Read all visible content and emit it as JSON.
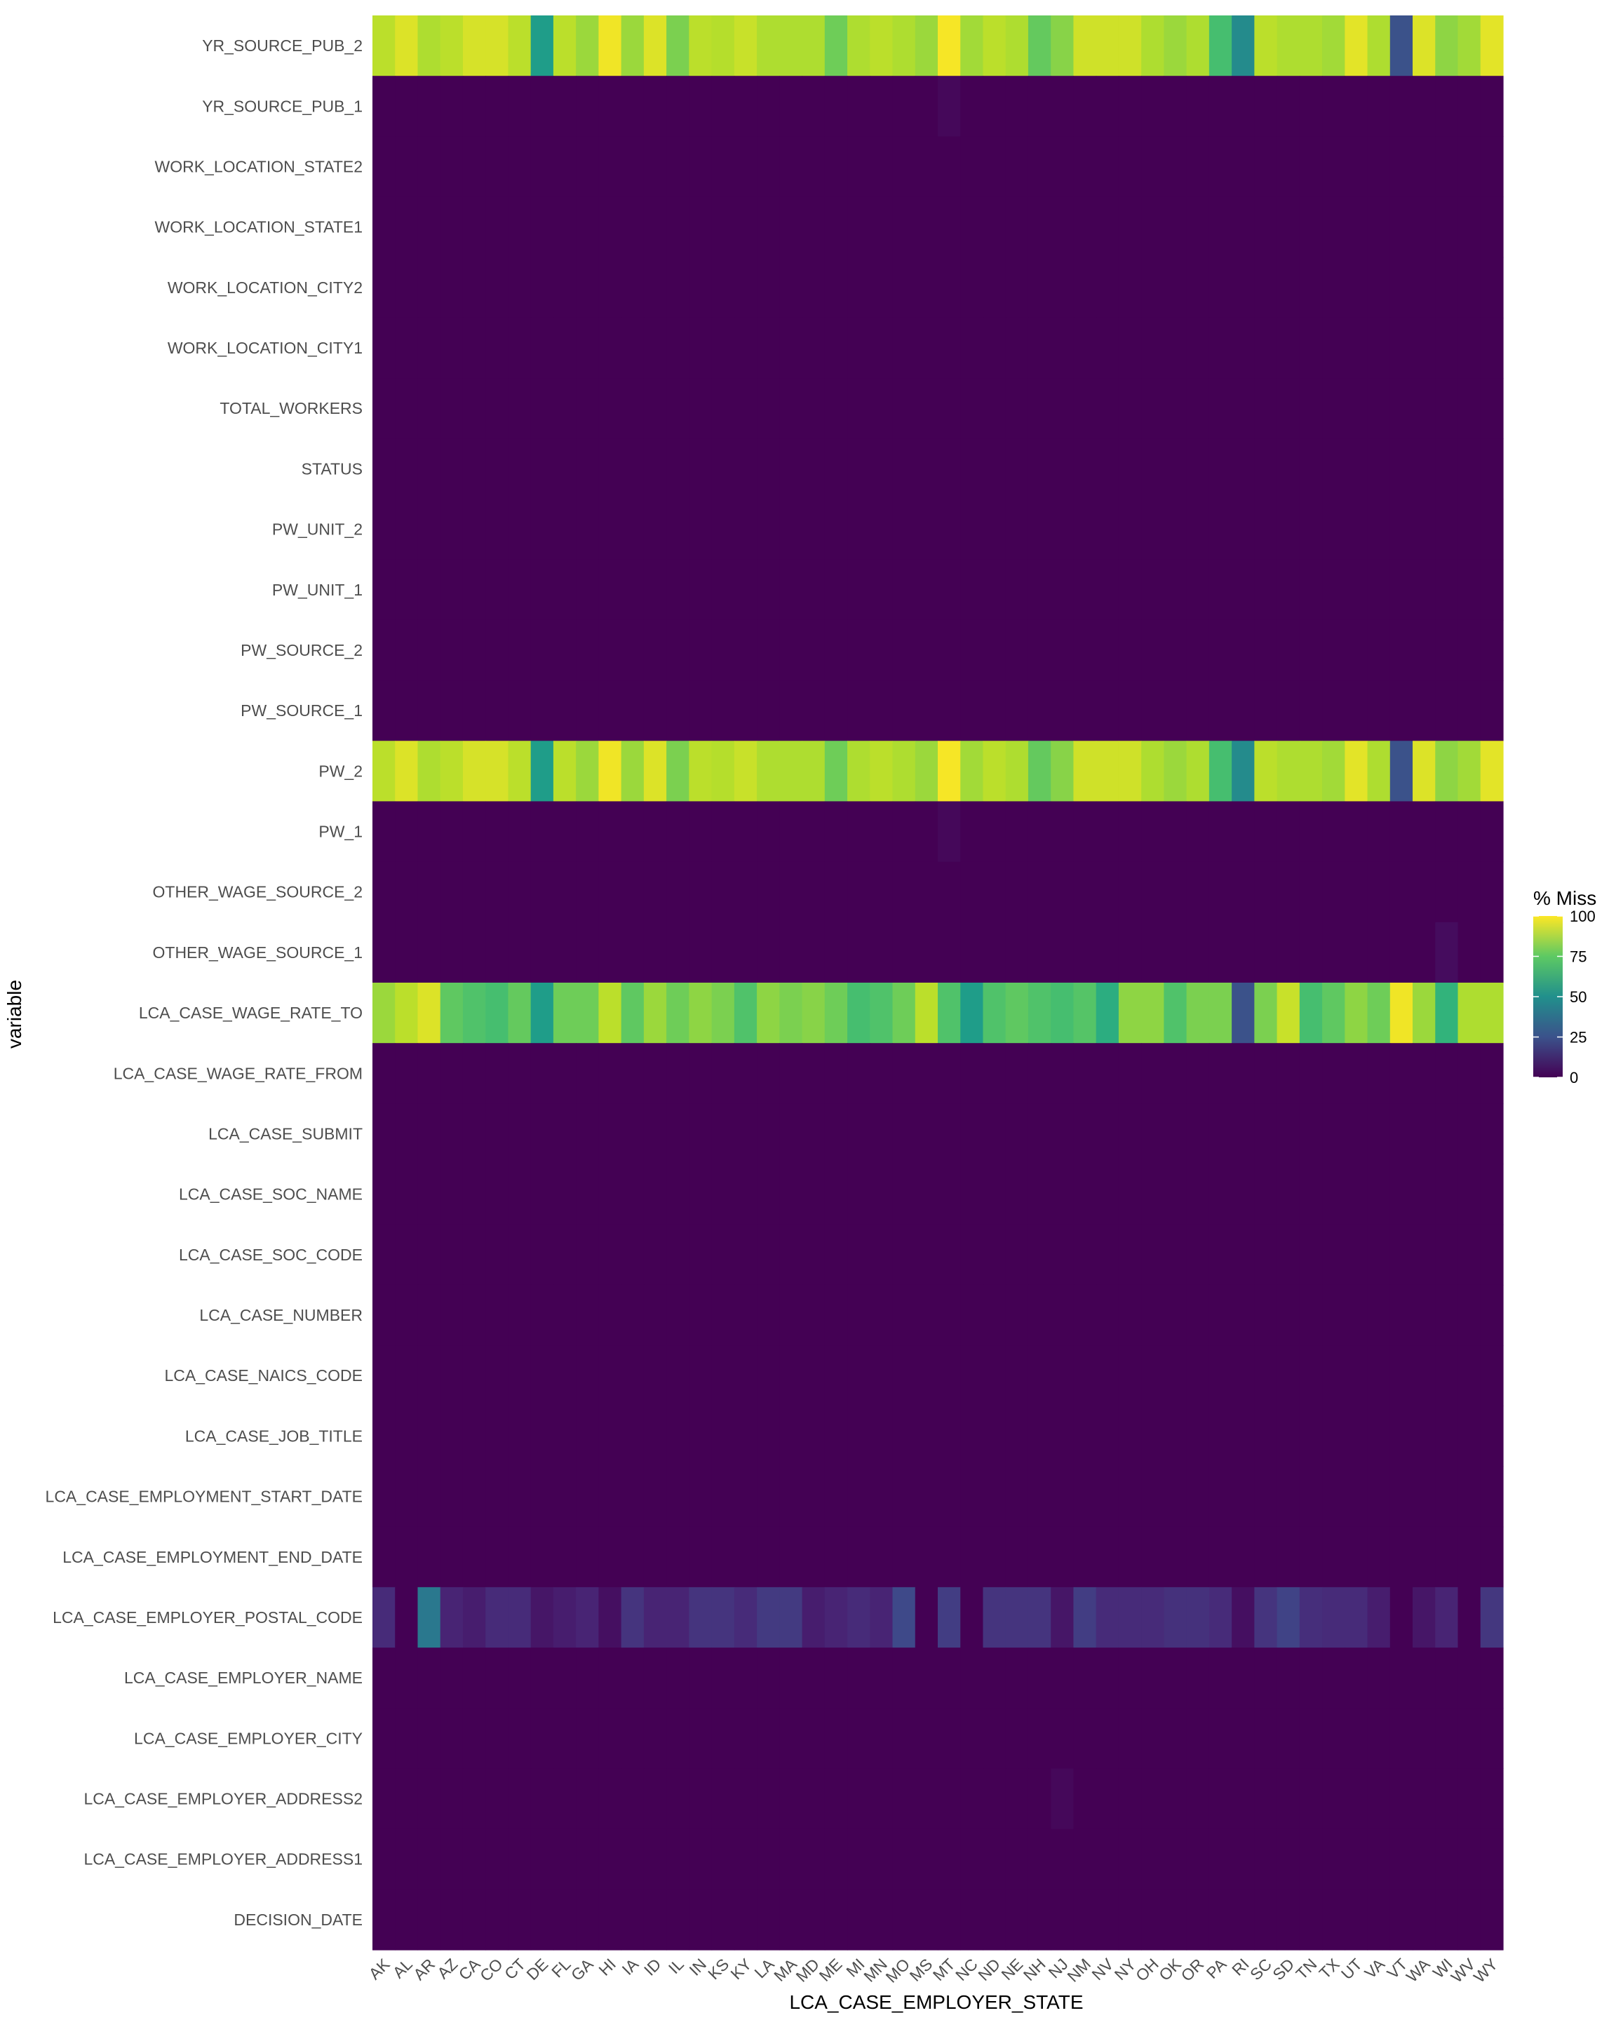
{
  "chart_data": {
    "type": "heatmap",
    "title": "",
    "xlabel": "LCA_CASE_EMPLOYER_STATE",
    "ylabel": "variable",
    "x": [
      "AK",
      "AL",
      "AR",
      "AZ",
      "CA",
      "CO",
      "CT",
      "DE",
      "FL",
      "GA",
      "HI",
      "IA",
      "ID",
      "IL",
      "IN",
      "KS",
      "KY",
      "LA",
      "MA",
      "MD",
      "ME",
      "MI",
      "MN",
      "MO",
      "MS",
      "MT",
      "NC",
      "ND",
      "NE",
      "NH",
      "NJ",
      "NM",
      "NV",
      "NY",
      "OH",
      "OK",
      "OR",
      "PA",
      "RI",
      "SC",
      "SD",
      "TN",
      "TX",
      "UT",
      "VA",
      "VT",
      "WA",
      "WI",
      "WV",
      "WY"
    ],
    "y": [
      "YR_SOURCE_PUB_2",
      "YR_SOURCE_PUB_1",
      "WORK_LOCATION_STATE2",
      "WORK_LOCATION_STATE1",
      "WORK_LOCATION_CITY2",
      "WORK_LOCATION_CITY1",
      "TOTAL_WORKERS",
      "STATUS",
      "PW_UNIT_2",
      "PW_UNIT_1",
      "PW_SOURCE_2",
      "PW_SOURCE_1",
      "PW_2",
      "PW_1",
      "OTHER_WAGE_SOURCE_2",
      "OTHER_WAGE_SOURCE_1",
      "LCA_CASE_WAGE_RATE_TO",
      "LCA_CASE_WAGE_RATE_FROM",
      "LCA_CASE_SUBMIT",
      "LCA_CASE_SOC_NAME",
      "LCA_CASE_SOC_CODE",
      "LCA_CASE_NUMBER",
      "LCA_CASE_NAICS_CODE",
      "LCA_CASE_JOB_TITLE",
      "LCA_CASE_EMPLOYMENT_START_DATE",
      "LCA_CASE_EMPLOYMENT_END_DATE",
      "LCA_CASE_EMPLOYER_POSTAL_CODE",
      "LCA_CASE_EMPLOYER_NAME",
      "LCA_CASE_EMPLOYER_CITY",
      "LCA_CASE_EMPLOYER_ADDRESS2",
      "LCA_CASE_EMPLOYER_ADDRESS1",
      "DECISION_DATE"
    ],
    "legend_title": "% Miss",
    "legend_placement": "right",
    "color_scale": "viridis",
    "zlim": [
      0,
      100
    ],
    "legend_ticks": [
      0,
      25,
      50,
      75,
      100
    ],
    "default_value": 0,
    "rows": {
      "YR_SOURCE_PUB_2": [
        90,
        95,
        88,
        90,
        94,
        94,
        90,
        55,
        90,
        85,
        98,
        85,
        95,
        80,
        90,
        89,
        92,
        88,
        88,
        88,
        78,
        88,
        90,
        88,
        85,
        99,
        86,
        90,
        88,
        76,
        82,
        93,
        93,
        93,
        88,
        85,
        88,
        70,
        48,
        90,
        88,
        88,
        86,
        96,
        88,
        25,
        95,
        83,
        86,
        96
      ],
      "YR_SOURCE_PUB_1": [
        0,
        0,
        0,
        0,
        0,
        0,
        0,
        0,
        0,
        0,
        0,
        0,
        0,
        0,
        0,
        0,
        0,
        0,
        0,
        0,
        0,
        0,
        0,
        0,
        0,
        2,
        0,
        0,
        0,
        0,
        0,
        0,
        0,
        0,
        0,
        0,
        0,
        0,
        0,
        0,
        0,
        0,
        0,
        0,
        0,
        0,
        0,
        0,
        0,
        0
      ],
      "PW_2": [
        90,
        95,
        88,
        90,
        94,
        94,
        90,
        55,
        90,
        85,
        98,
        85,
        95,
        80,
        90,
        89,
        92,
        88,
        88,
        88,
        78,
        88,
        90,
        88,
        85,
        99,
        86,
        90,
        88,
        76,
        82,
        93,
        93,
        93,
        88,
        85,
        88,
        70,
        48,
        90,
        88,
        88,
        86,
        96,
        88,
        25,
        95,
        83,
        86,
        96
      ],
      "PW_1": [
        0,
        0,
        0,
        0,
        0,
        0,
        0,
        0,
        0,
        0,
        0,
        0,
        0,
        0,
        0,
        0,
        0,
        0,
        0,
        0,
        0,
        0,
        0,
        0,
        0,
        2,
        0,
        0,
        0,
        0,
        0,
        0,
        0,
        0,
        0,
        0,
        0,
        0,
        0,
        0,
        0,
        0,
        0,
        0,
        0,
        0,
        0,
        0,
        0,
        0
      ],
      "OTHER_WAGE_SOURCE_1": [
        0,
        0,
        0,
        0,
        0,
        0,
        0,
        0,
        0,
        0,
        0,
        0,
        0,
        0,
        0,
        0,
        0,
        0,
        0,
        0,
        0,
        0,
        0,
        0,
        0,
        0,
        0,
        0,
        0,
        0,
        0,
        0,
        0,
        0,
        0,
        0,
        0,
        0,
        0,
        0,
        0,
        0,
        0,
        0,
        0,
        0,
        0,
        3,
        0,
        0
      ],
      "LCA_CASE_WAGE_RATE_TO": [
        85,
        90,
        95,
        75,
        72,
        70,
        76,
        55,
        78,
        78,
        90,
        75,
        85,
        78,
        83,
        80,
        72,
        83,
        80,
        82,
        78,
        70,
        72,
        78,
        90,
        72,
        55,
        72,
        75,
        72,
        70,
        73,
        62,
        83,
        83,
        72,
        80,
        80,
        25,
        80,
        92,
        70,
        75,
        83,
        78,
        98,
        85,
        65,
        88,
        88
      ],
      "LCA_CASE_EMPLOYER_POSTAL_CODE": [
        12,
        0,
        40,
        10,
        8,
        12,
        12,
        6,
        8,
        10,
        4,
        15,
        10,
        10,
        15,
        15,
        12,
        17,
        17,
        8,
        10,
        12,
        10,
        22,
        0,
        18,
        0,
        15,
        15,
        15,
        6,
        18,
        12,
        12,
        12,
        14,
        14,
        12,
        4,
        15,
        20,
        13,
        12,
        12,
        8,
        0,
        6,
        10,
        0,
        16
      ],
      "LCA_CASE_EMPLOYER_ADDRESS2": [
        0,
        0,
        0,
        0,
        0,
        0,
        0,
        0,
        0,
        0,
        0,
        0,
        0,
        0,
        0,
        0,
        0,
        0,
        0,
        0,
        0,
        0,
        0,
        0,
        0,
        0,
        0,
        0,
        0,
        0,
        2,
        0,
        0,
        0,
        0,
        0,
        0,
        0,
        0,
        0,
        0,
        0,
        0,
        0,
        0,
        0,
        0,
        0,
        0,
        0
      ]
    }
  }
}
